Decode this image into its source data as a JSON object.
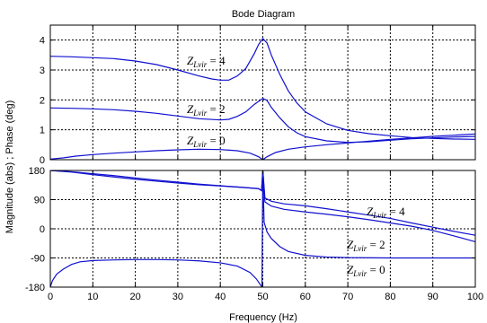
{
  "chart_data": {
    "type": "line",
    "title": "Bode Diagram",
    "xlabel": "Frequency  (Hz)",
    "ylabel": "Magnitude (abs) ; Phase (deg)",
    "grid": true,
    "xlim": [
      0,
      100
    ],
    "xticks": [
      "0",
      "10",
      "20",
      "30",
      "40",
      "50",
      "60",
      "70",
      "80",
      "90",
      "100"
    ],
    "panels": [
      {
        "name": "magnitude",
        "ylim": [
          0,
          4.5
        ],
        "yticks": [
          "0",
          "1",
          "2",
          "3",
          "4"
        ],
        "series": [
          {
            "label_text": "Z",
            "label_sub": "Lvir",
            "label_value": " = 4",
            "color": "#1010d0",
            "points": [
              [
                0,
                3.46
              ],
              [
                5,
                3.44
              ],
              [
                10,
                3.41
              ],
              [
                15,
                3.38
              ],
              [
                20,
                3.3
              ],
              [
                25,
                3.18
              ],
              [
                30,
                3.0
              ],
              [
                35,
                2.8
              ],
              [
                38,
                2.7
              ],
              [
                40,
                2.66
              ],
              [
                42,
                2.66
              ],
              [
                44,
                2.8
              ],
              [
                46,
                3.05
              ],
              [
                48,
                3.55
              ],
              [
                49,
                3.85
              ],
              [
                50,
                4.05
              ],
              [
                51,
                3.9
              ],
              [
                52,
                3.5
              ],
              [
                54,
                2.85
              ],
              [
                56,
                2.3
              ],
              [
                58,
                1.9
              ],
              [
                60,
                1.6
              ],
              [
                65,
                1.2
              ],
              [
                70,
                0.98
              ],
              [
                75,
                0.87
              ],
              [
                80,
                0.8
              ],
              [
                85,
                0.74
              ],
              [
                90,
                0.71
              ],
              [
                95,
                0.69
              ],
              [
                100,
                0.68
              ]
            ]
          },
          {
            "label_text": "Z",
            "label_sub": "Lvir",
            "label_value": " = 2",
            "color": "#1010d0",
            "points": [
              [
                0,
                1.73
              ],
              [
                5,
                1.72
              ],
              [
                10,
                1.7
              ],
              [
                15,
                1.67
              ],
              [
                20,
                1.62
              ],
              [
                25,
                1.55
              ],
              [
                30,
                1.46
              ],
              [
                35,
                1.37
              ],
              [
                40,
                1.33
              ],
              [
                42,
                1.35
              ],
              [
                44,
                1.45
              ],
              [
                46,
                1.6
              ],
              [
                48,
                1.85
              ],
              [
                50,
                2.05
              ],
              [
                51,
                1.98
              ],
              [
                52,
                1.75
              ],
              [
                54,
                1.4
              ],
              [
                56,
                1.1
              ],
              [
                58,
                0.9
              ],
              [
                60,
                0.77
              ],
              [
                65,
                0.63
              ],
              [
                70,
                0.58
              ],
              [
                75,
                0.6
              ],
              [
                80,
                0.65
              ],
              [
                85,
                0.7
              ],
              [
                90,
                0.73
              ],
              [
                95,
                0.76
              ],
              [
                100,
                0.78
              ]
            ]
          },
          {
            "label_text": "Z",
            "label_sub": "Lvir",
            "label_value": " = 0",
            "color": "#1010d0",
            "points": [
              [
                0,
                0.02
              ],
              [
                3,
                0.06
              ],
              [
                6,
                0.12
              ],
              [
                10,
                0.17
              ],
              [
                15,
                0.22
              ],
              [
                20,
                0.26
              ],
              [
                25,
                0.3
              ],
              [
                30,
                0.33
              ],
              [
                35,
                0.35
              ],
              [
                40,
                0.34
              ],
              [
                44,
                0.3
              ],
              [
                47,
                0.22
              ],
              [
                49,
                0.1
              ],
              [
                50,
                0.0
              ],
              [
                51,
                0.1
              ],
              [
                53,
                0.24
              ],
              [
                56,
                0.35
              ],
              [
                60,
                0.43
              ],
              [
                65,
                0.5
              ],
              [
                70,
                0.56
              ],
              [
                75,
                0.62
              ],
              [
                80,
                0.68
              ],
              [
                85,
                0.73
              ],
              [
                90,
                0.78
              ],
              [
                95,
                0.82
              ],
              [
                100,
                0.86
              ]
            ]
          }
        ]
      },
      {
        "name": "phase",
        "ylim": [
          -180,
          180
        ],
        "yticks": [
          "180",
          "90",
          "0",
          "-90",
          "-180"
        ],
        "series": [
          {
            "label_text": "Z",
            "label_sub": "Lvir",
            "label_value": " = 4",
            "color": "#1010d0",
            "points": [
              [
                0,
                180
              ],
              [
                5,
                176
              ],
              [
                10,
                170
              ],
              [
                15,
                164
              ],
              [
                20,
                157
              ],
              [
                25,
                150
              ],
              [
                30,
                144
              ],
              [
                35,
                138
              ],
              [
                40,
                133
              ],
              [
                45,
                128
              ],
              [
                49,
                124
              ],
              [
                49.7,
                118
              ],
              [
                50,
                180
              ],
              [
                50.5,
                95
              ],
              [
                52,
                85
              ],
              [
                55,
                77
              ],
              [
                60,
                71
              ],
              [
                65,
                62
              ],
              [
                70,
                52
              ],
              [
                75,
                42
              ],
              [
                80,
                32
              ],
              [
                85,
                18
              ],
              [
                90,
                5
              ],
              [
                95,
                -8
              ],
              [
                100,
                -20
              ]
            ]
          },
          {
            "label_text": "Z",
            "label_sub": "Lvir",
            "label_value": " = 2",
            "color": "#1010d0",
            "points": [
              [
                0,
                180
              ],
              [
                5,
                175
              ],
              [
                10,
                167
              ],
              [
                15,
                160
              ],
              [
                20,
                153
              ],
              [
                25,
                147
              ],
              [
                30,
                141
              ],
              [
                35,
                136
              ],
              [
                40,
                132
              ],
              [
                45,
                128
              ],
              [
                49,
                124
              ],
              [
                49.7,
                118
              ],
              [
                50,
                180
              ],
              [
                50.5,
                83
              ],
              [
                52,
                70
              ],
              [
                55,
                60
              ],
              [
                60,
                52
              ],
              [
                65,
                45
              ],
              [
                70,
                37
              ],
              [
                75,
                28
              ],
              [
                80,
                18
              ],
              [
                85,
                8
              ],
              [
                90,
                -5
              ],
              [
                95,
                -22
              ],
              [
                100,
                -40
              ]
            ]
          },
          {
            "label_text": "Z",
            "label_sub": "Lvir",
            "label_value": " = 0",
            "color": "#1010d0",
            "points": [
              [
                0,
                -180
              ],
              [
                0.5,
                -160
              ],
              [
                1.5,
                -140
              ],
              [
                3,
                -125
              ],
              [
                5,
                -110
              ],
              [
                7,
                -102
              ],
              [
                10,
                -98
              ],
              [
                15,
                -96
              ],
              [
                20,
                -95
              ],
              [
                25,
                -95
              ],
              [
                30,
                -96
              ],
              [
                35,
                -99
              ],
              [
                40,
                -105
              ],
              [
                44,
                -115
              ],
              [
                47,
                -135
              ],
              [
                48.5,
                -155
              ],
              [
                49.8,
                -180
              ],
              [
                50,
                180
              ],
              [
                50.3,
                20
              ],
              [
                51,
                -10
              ],
              [
                52,
                -30
              ],
              [
                54,
                -55
              ],
              [
                56,
                -70
              ],
              [
                60,
                -82
              ],
              [
                65,
                -87
              ],
              [
                70,
                -89
              ],
              [
                80,
                -90
              ],
              [
                90,
                -90
              ],
              [
                100,
                -90
              ]
            ]
          }
        ]
      }
    ]
  }
}
